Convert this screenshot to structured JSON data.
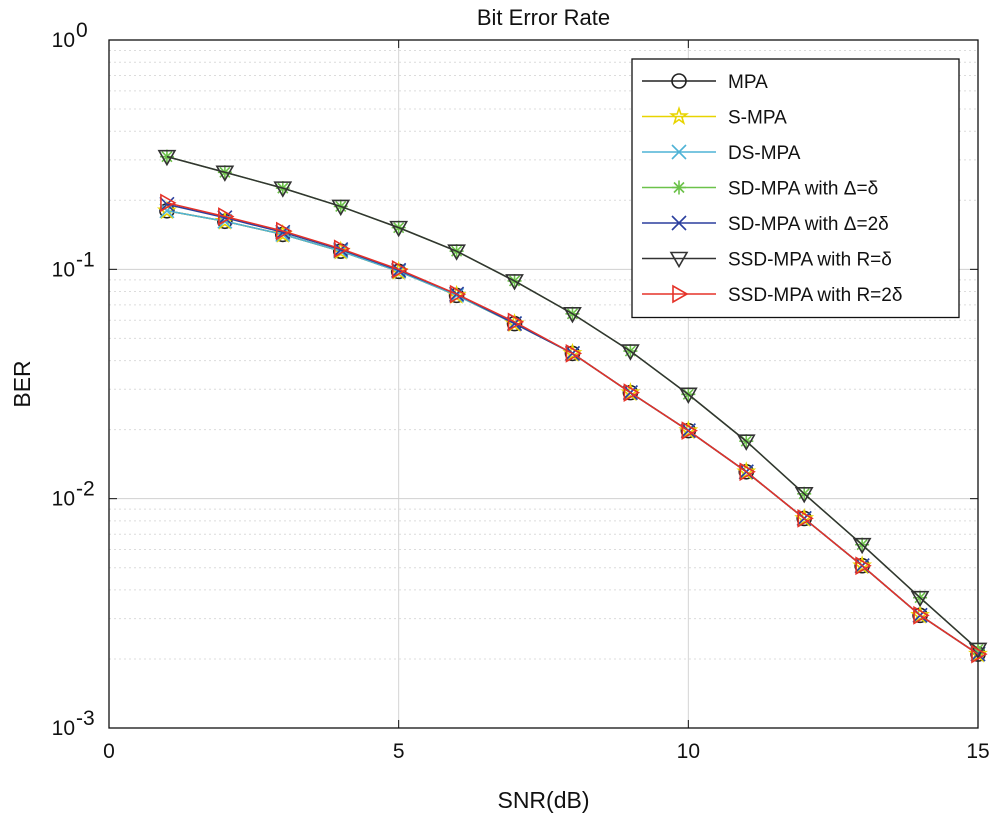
{
  "chart_data": {
    "type": "line",
    "title": "Bit Error Rate",
    "xlabel": "SNR(dB)",
    "ylabel": "BER",
    "xlim": [
      0,
      15
    ],
    "ylim": [
      0.001,
      1
    ],
    "yscale": "log",
    "grid": true,
    "legend_position": "top-right",
    "x_ticks": [
      "0",
      "5",
      "10",
      "15"
    ],
    "y_ticks": [
      {
        "base": "10",
        "exp": "0"
      },
      {
        "base": "10",
        "exp": "-1"
      },
      {
        "base": "10",
        "exp": "-2"
      },
      {
        "base": "10",
        "exp": "-3"
      }
    ],
    "x": [
      1,
      2,
      3,
      4,
      5,
      6,
      7,
      8,
      9,
      10,
      11,
      12,
      13,
      14,
      15
    ],
    "series": [
      {
        "name": "MPA",
        "color": "#222222",
        "marker": "circle",
        "values": [
          0.18,
          0.162,
          0.142,
          0.12,
          0.098,
          0.077,
          0.058,
          0.043,
          0.029,
          0.0198,
          0.0131,
          0.0082,
          0.0051,
          0.0031,
          0.0021
        ]
      },
      {
        "name": "S-MPA",
        "color": "#e8d400",
        "marker": "star",
        "values": [
          0.18,
          0.162,
          0.142,
          0.12,
          0.098,
          0.077,
          0.058,
          0.043,
          0.029,
          0.0198,
          0.0131,
          0.0082,
          0.0051,
          0.0031,
          0.0021
        ]
      },
      {
        "name": "DS-MPA",
        "color": "#4fb3d6",
        "marker": "x",
        "values": [
          0.18,
          0.162,
          0.142,
          0.12,
          0.098,
          0.077,
          0.058,
          0.043,
          0.029,
          0.0198,
          0.0131,
          0.0082,
          0.0051,
          0.0031,
          0.0021
        ]
      },
      {
        "name": "SD-MPA with Δ=δ",
        "color": "#6cc24a",
        "marker": "asterisk",
        "values": [
          0.31,
          0.265,
          0.226,
          0.188,
          0.152,
          0.12,
          0.089,
          0.064,
          0.044,
          0.0285,
          0.0178,
          0.0105,
          0.0063,
          0.0037,
          0.0022
        ]
      },
      {
        "name": "SD-MPA with Δ=2δ",
        "color": "#2b3f9e",
        "marker": "x",
        "values": [
          0.192,
          0.168,
          0.145,
          0.122,
          0.099,
          0.078,
          0.058,
          0.043,
          0.029,
          0.0198,
          0.0131,
          0.0082,
          0.0051,
          0.0031,
          0.0021
        ]
      },
      {
        "name": "SSD-MPA with R=δ",
        "color": "#333333",
        "marker": "triangle-down",
        "values": [
          0.31,
          0.265,
          0.226,
          0.188,
          0.152,
          0.12,
          0.089,
          0.064,
          0.044,
          0.0285,
          0.0178,
          0.0105,
          0.0063,
          0.0037,
          0.0022
        ]
      },
      {
        "name": "SSD-MPA with R=2δ",
        "color": "#e53228",
        "marker": "triangle-right",
        "values": [
          0.195,
          0.17,
          0.147,
          0.123,
          0.1,
          0.078,
          0.059,
          0.043,
          0.029,
          0.0198,
          0.0131,
          0.0082,
          0.0051,
          0.0031,
          0.0021
        ]
      }
    ]
  }
}
